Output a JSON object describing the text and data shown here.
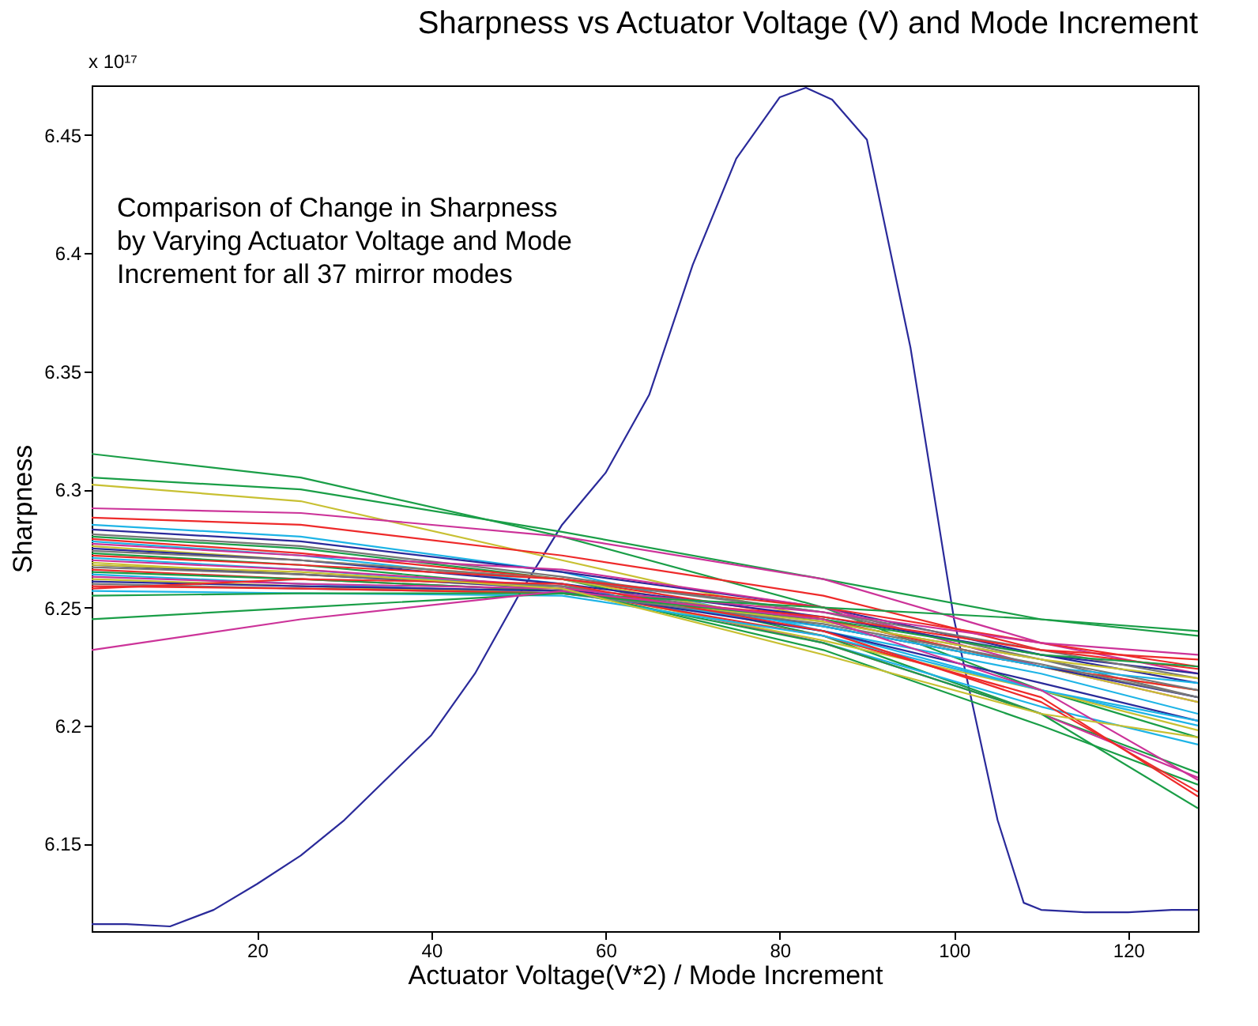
{
  "chart_data": {
    "type": "line",
    "title": "Sharpness vs Actuator Voltage (V) and Mode Increment",
    "xlabel": "Actuator Voltage(V*2) / Mode Increment",
    "ylabel": "Sharpness",
    "annotations": [
      "x 10¹⁷",
      "Comparison of Change in Sharpness\nby Varying Actuator Voltage and Mode\nIncrement for all 37 mirror modes"
    ],
    "xlim": [
      1,
      128
    ],
    "xticks": [
      20,
      40,
      60,
      80,
      100,
      120
    ],
    "ylim": [
      6.113,
      6.471
    ],
    "yticks": [
      6.15,
      6.2,
      6.25,
      6.3,
      6.35,
      6.4,
      6.45
    ],
    "grid": false,
    "line_style": "solid",
    "marker": "none",
    "x": [
      1,
      25,
      55,
      85,
      110,
      128
    ],
    "series": [
      {
        "color": "#2a2a9a",
        "x": [
          1,
          5,
          10,
          15,
          20,
          25,
          30,
          35,
          40,
          45,
          50,
          55,
          60,
          65,
          70,
          75,
          80,
          83,
          86,
          90,
          95,
          100,
          105,
          108,
          110,
          115,
          120,
          125,
          128
        ],
        "values": [
          6.116,
          6.116,
          6.115,
          6.122,
          6.133,
          6.145,
          6.16,
          6.178,
          6.196,
          6.222,
          6.255,
          6.285,
          6.307,
          6.34,
          6.395,
          6.44,
          6.466,
          6.47,
          6.465,
          6.448,
          6.36,
          6.245,
          6.16,
          6.125,
          6.122,
          6.121,
          6.121,
          6.122,
          6.122
        ]
      },
      {
        "color": "#1a9e47",
        "values": [
          6.315,
          6.305,
          6.28,
          6.25,
          6.215,
          6.195
        ]
      },
      {
        "color": "#1a9e47",
        "values": [
          6.305,
          6.3,
          6.282,
          6.262,
          6.245,
          6.24
        ]
      },
      {
        "color": "#c8c032",
        "values": [
          6.302,
          6.295,
          6.27,
          6.245,
          6.225,
          6.215
        ]
      },
      {
        "color": "#cc3399",
        "values": [
          6.292,
          6.29,
          6.28,
          6.262,
          6.235,
          6.222
        ]
      },
      {
        "color": "#ee2a2a",
        "values": [
          6.288,
          6.285,
          6.272,
          6.255,
          6.232,
          6.228
        ]
      },
      {
        "color": "#1eb4e6",
        "values": [
          6.285,
          6.28,
          6.265,
          6.24,
          6.215,
          6.2
        ]
      },
      {
        "color": "#2a2a9a",
        "values": [
          6.283,
          6.278,
          6.265,
          6.25,
          6.23,
          6.218
        ]
      },
      {
        "color": "#777777",
        "values": [
          6.281,
          6.276,
          6.263,
          6.248,
          6.228,
          6.212
        ]
      },
      {
        "color": "#1a9e47",
        "values": [
          6.28,
          6.275,
          6.262,
          6.238,
          6.205,
          6.18
        ]
      },
      {
        "color": "#ee2a2a",
        "values": [
          6.279,
          6.273,
          6.262,
          6.245,
          6.225,
          6.215
        ]
      },
      {
        "color": "#1eb4e6",
        "values": [
          6.278,
          6.272,
          6.26,
          6.235,
          6.208,
          6.192
        ]
      },
      {
        "color": "#cc3399",
        "values": [
          6.277,
          6.272,
          6.266,
          6.25,
          6.225,
          6.21
        ]
      },
      {
        "color": "#c8c032",
        "values": [
          6.276,
          6.27,
          6.262,
          6.242,
          6.225,
          6.21
        ]
      },
      {
        "color": "#2a2a9a",
        "values": [
          6.275,
          6.27,
          6.26,
          6.246,
          6.23,
          6.222
        ]
      },
      {
        "color": "#777777",
        "values": [
          6.274,
          6.27,
          6.262,
          6.248,
          6.232,
          6.22
        ]
      },
      {
        "color": "#1a9e47",
        "values": [
          6.273,
          6.268,
          6.258,
          6.232,
          6.2,
          6.175
        ]
      },
      {
        "color": "#ee2a2a",
        "values": [
          6.272,
          6.268,
          6.262,
          6.25,
          6.235,
          6.225
        ]
      },
      {
        "color": "#1eb4e6",
        "values": [
          6.271,
          6.266,
          6.258,
          6.24,
          6.222,
          6.205
        ]
      },
      {
        "color": "#cc3399",
        "values": [
          6.27,
          6.266,
          6.259,
          6.235,
          6.205,
          6.178
        ]
      },
      {
        "color": "#c8c032",
        "values": [
          6.269,
          6.264,
          6.258,
          6.236,
          6.215,
          6.198
        ]
      },
      {
        "color": "#2a2a9a",
        "values": [
          6.268,
          6.264,
          6.258,
          6.242,
          6.225,
          6.212
        ]
      },
      {
        "color": "#777777",
        "values": [
          6.267,
          6.264,
          6.259,
          6.244,
          6.228,
          6.215
        ]
      },
      {
        "color": "#ee2a2a",
        "values": [
          6.266,
          6.262,
          6.257,
          6.238,
          6.212,
          6.17
        ]
      },
      {
        "color": "#1a9e47",
        "values": [
          6.265,
          6.262,
          6.257,
          6.235,
          6.205,
          6.165
        ]
      },
      {
        "color": "#1eb4e6",
        "values": [
          6.264,
          6.26,
          6.256,
          6.242,
          6.225,
          6.218
        ]
      },
      {
        "color": "#cc3399",
        "values": [
          6.263,
          6.26,
          6.258,
          6.248,
          6.235,
          6.23
        ]
      },
      {
        "color": "#c8c032",
        "values": [
          6.262,
          6.259,
          6.256,
          6.244,
          6.228,
          6.22
        ]
      },
      {
        "color": "#2a2a9a",
        "values": [
          6.261,
          6.259,
          6.257,
          6.24,
          6.218,
          6.202
        ]
      },
      {
        "color": "#777777",
        "values": [
          6.26,
          6.258,
          6.256,
          6.243,
          6.226,
          6.212
        ]
      },
      {
        "color": "#ee2a2a",
        "values": [
          6.259,
          6.258,
          6.256,
          6.246,
          6.232,
          6.224
        ]
      },
      {
        "color": "#1eb4e6",
        "values": [
          6.257,
          6.256,
          6.255,
          6.238,
          6.215,
          6.202
        ]
      },
      {
        "color": "#1a9e47",
        "values": [
          6.255,
          6.256,
          6.256,
          6.25,
          6.245,
          6.238
        ]
      },
      {
        "color": "#ee2a2a",
        "values": [
          6.258,
          6.262,
          6.26,
          6.24,
          6.21,
          6.172
        ]
      },
      {
        "color": "#1a9e47",
        "values": [
          6.245,
          6.25,
          6.256,
          6.245,
          6.23,
          6.225
        ]
      },
      {
        "color": "#cc3399",
        "values": [
          6.232,
          6.245,
          6.257,
          6.245,
          6.215,
          6.177
        ]
      },
      {
        "color": "#c8c032",
        "values": [
          6.268,
          6.265,
          6.258,
          6.23,
          6.205,
          6.195
        ]
      }
    ]
  }
}
